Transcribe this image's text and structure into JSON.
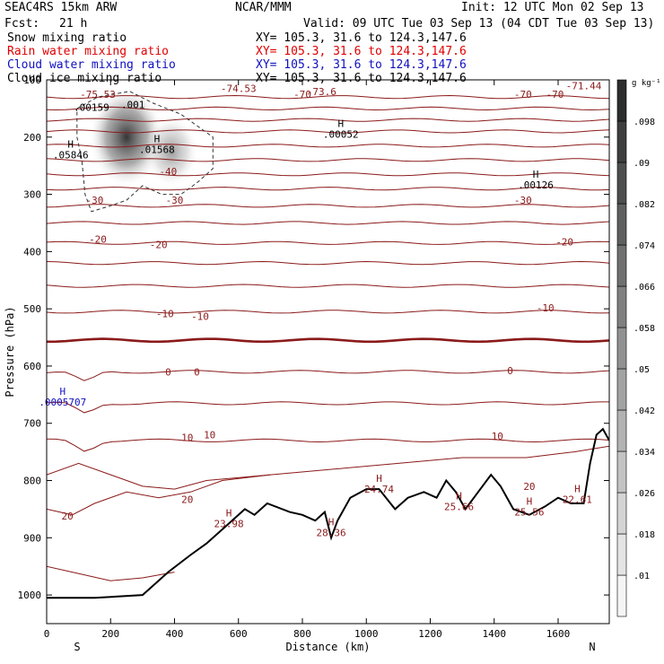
{
  "header": {
    "model": "SEAC4RS 15km ARW",
    "org": "NCAR/MMM",
    "init": "Init: 12 UTC Mon 02 Sep 13",
    "fcst_label": "Fcst:",
    "fcst_value": "21 h",
    "valid": "Valid: 09 UTC Tue 03 Sep 13 (04 CDT Tue 03 Sep 13)"
  },
  "fields": [
    {
      "name": "Snow mixing ratio",
      "xy": "XY= 105.3, 31.6 to 124.3,147.6",
      "color": "#000000"
    },
    {
      "name": "Rain water mixing ratio",
      "xy": "XY= 105.3, 31.6 to 124.3,147.6",
      "color": "#e00000"
    },
    {
      "name": "Cloud water mixing ratio",
      "xy": "XY= 105.3, 31.6 to 124.3,147.6",
      "color": "#1010c0"
    },
    {
      "name": "Cloud ice mixing ratio",
      "xy": "XY= 105.3, 31.6 to 124.3,147.6",
      "color": "#000000"
    }
  ],
  "chart_data": {
    "type": "contour-cross-section",
    "xlabel": "Distance (km)",
    "ylabel": "Pressure (hPa)",
    "xlim": [
      0,
      1760
    ],
    "ylim": [
      1050,
      100
    ],
    "x_ticks": [
      0,
      200,
      400,
      600,
      800,
      1000,
      1200,
      1400,
      1600
    ],
    "y_ticks": [
      100,
      200,
      300,
      400,
      500,
      600,
      700,
      800,
      900,
      1000
    ],
    "x_end_labels": {
      "left": "S",
      "right": "N"
    },
    "colorbar": {
      "unit": "g kg⁻¹",
      "ticks": [
        ".01",
        ".018",
        ".026",
        ".034",
        ".042",
        ".05",
        ".058",
        ".066",
        ".074",
        ".082",
        ".09",
        ".098"
      ]
    },
    "temperature_labels": [
      {
        "text": "-74.53",
        "x": 600,
        "p": 115
      },
      {
        "text": "-73.6",
        "x": 860,
        "p": 120
      },
      {
        "text": "-75.53",
        "x": 160,
        "p": 125
      },
      {
        "text": "-71.44",
        "x": 1680,
        "p": 110
      },
      {
        "text": "-70",
        "x": 800,
        "p": 125
      },
      {
        "text": "-70",
        "x": 1490,
        "p": 125
      },
      {
        "text": "-70",
        "x": 1590,
        "p": 125
      },
      {
        "text": "-40",
        "x": 380,
        "p": 260
      },
      {
        "text": "-30",
        "x": 150,
        "p": 310
      },
      {
        "text": "-30",
        "x": 400,
        "p": 310
      },
      {
        "text": "-30",
        "x": 1490,
        "p": 310
      },
      {
        "text": "-20",
        "x": 160,
        "p": 378
      },
      {
        "text": "-20",
        "x": 350,
        "p": 388
      },
      {
        "text": "-20",
        "x": 1620,
        "p": 383
      },
      {
        "text": "-10",
        "x": 370,
        "p": 508
      },
      {
        "text": "-10",
        "x": 480,
        "p": 513
      },
      {
        "text": "-10",
        "x": 1560,
        "p": 498
      },
      {
        "text": "0",
        "x": 380,
        "p": 610
      },
      {
        "text": "0",
        "x": 470,
        "p": 610
      },
      {
        "text": "0",
        "x": 1450,
        "p": 608
      },
      {
        "text": "10",
        "x": 440,
        "p": 725
      },
      {
        "text": "10",
        "x": 510,
        "p": 720
      },
      {
        "text": "10",
        "x": 1410,
        "p": 722
      },
      {
        "text": "20",
        "x": 440,
        "p": 833
      },
      {
        "text": "20",
        "x": 65,
        "p": 862
      },
      {
        "text": "20",
        "x": 1510,
        "p": 810
      }
    ],
    "maxima_labels": [
      {
        "marker": "H",
        "value": "23.98",
        "x": 570,
        "p": 872,
        "color": "#8b1a1a"
      },
      {
        "marker": "H",
        "value": "28.36",
        "x": 890,
        "p": 888,
        "color": "#8b1a1a"
      },
      {
        "marker": "H",
        "value": "24.74",
        "x": 1040,
        "p": 812,
        "color": "#8b1a1a"
      },
      {
        "marker": "H",
        "value": "25.66",
        "x": 1290,
        "p": 842,
        "color": "#8b1a1a"
      },
      {
        "marker": "H",
        "value": "25.56",
        "x": 1510,
        "p": 852,
        "color": "#8b1a1a"
      },
      {
        "marker": "H",
        "value": "22.61",
        "x": 1660,
        "p": 830,
        "color": "#8b1a1a"
      },
      {
        "marker": "H",
        "value": ".05846",
        "x": 75,
        "p": 228,
        "color": "#000000"
      },
      {
        "marker": "H",
        "value": ".01568",
        "x": 345,
        "p": 218,
        "color": "#000000"
      },
      {
        "marker": "H",
        "value": ".00052",
        "x": 920,
        "p": 192,
        "color": "#000000"
      },
      {
        "marker": "H",
        "value": ".00126",
        "x": 1530,
        "p": 280,
        "color": "#000000"
      },
      {
        "marker": "",
        "value": ".00159",
        "x": 140,
        "p": 145,
        "color": "#000000"
      },
      {
        "marker": "",
        "value": ".001",
        "x": 270,
        "p": 140,
        "color": "#000000"
      },
      {
        "marker": "H",
        "value": ".0005707",
        "x": 50,
        "p": 660,
        "color": "#1010c0"
      }
    ]
  }
}
